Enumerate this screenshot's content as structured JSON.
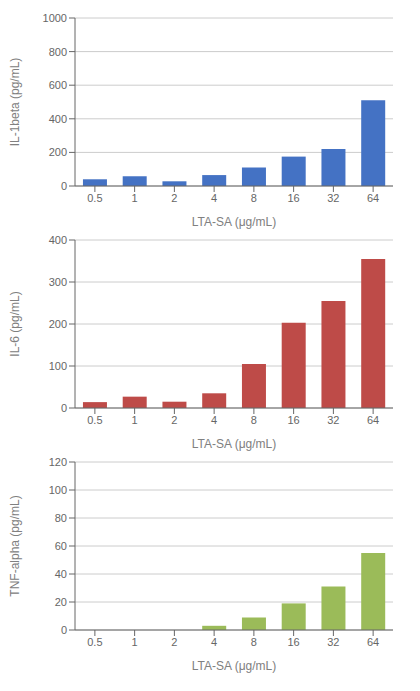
{
  "chart_data": [
    {
      "type": "bar",
      "categories": [
        "0.5",
        "1",
        "2",
        "4",
        "8",
        "16",
        "32",
        "64"
      ],
      "xlabel": "LTA-SA (μg/mL)",
      "ylabel": "IL-1beta (pg/mL)",
      "values": [
        40,
        58,
        28,
        65,
        110,
        175,
        220,
        510
      ],
      "color": "#4472C4",
      "ylim": [
        0,
        1000
      ],
      "yticks": [
        0,
        200,
        400,
        600,
        800,
        1000
      ],
      "grid": true
    },
    {
      "type": "bar",
      "categories": [
        "0.5",
        "1",
        "2",
        "4",
        "8",
        "16",
        "32",
        "64"
      ],
      "xlabel": "LTA-SA (μg/mL)",
      "ylabel": "IL-6 (pg/mL)",
      "values": [
        14,
        27,
        15,
        35,
        105,
        203,
        255,
        355
      ],
      "color": "#BE4B48",
      "ylim": [
        0,
        400
      ],
      "yticks": [
        0,
        100,
        200,
        300,
        400
      ],
      "grid": true
    },
    {
      "type": "bar",
      "categories": [
        "0.5",
        "1",
        "2",
        "4",
        "8",
        "16",
        "32",
        "64"
      ],
      "xlabel": "LTA-SA (μg/mL)",
      "ylabel": "TNF-alpha (pg/mL)",
      "values": [
        0,
        0,
        0,
        3,
        9,
        19,
        31,
        55
      ],
      "color": "#9BBB59",
      "ylim": [
        0,
        120
      ],
      "yticks": [
        0,
        20,
        40,
        60,
        80,
        100,
        120
      ],
      "grid": true
    }
  ]
}
